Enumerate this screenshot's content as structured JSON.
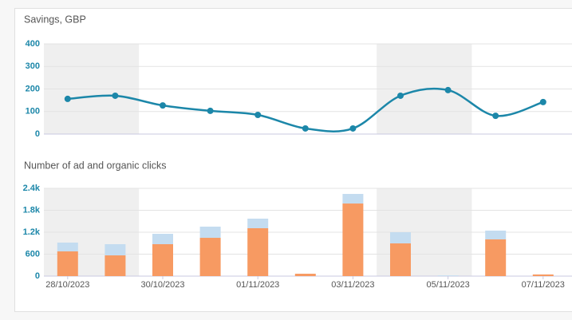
{
  "chart_data": [
    {
      "type": "line",
      "title": "Savings, GBP",
      "color": "#1c87a9",
      "values": [
        156,
        170,
        127,
        103,
        85,
        25,
        25,
        170,
        195,
        81,
        142
      ],
      "ylim": [
        0,
        400
      ],
      "yticks": [
        0,
        100,
        200,
        300,
        400
      ],
      "grid": true
    },
    {
      "type": "stacked-bar",
      "title": "Number of ad and organic clicks",
      "categories": [
        "28/10/2023",
        null,
        "30/10/2023",
        null,
        "01/11/2023",
        null,
        "03/11/2023",
        null,
        "05/11/2023",
        null,
        "07/11/2023"
      ],
      "series": [
        {
          "color": "#f79a62",
          "values": [
            676,
            567,
            873,
            1047,
            1309,
            65,
            1985,
            895,
            0,
            1004,
            45
          ]
        },
        {
          "color": "#c4dcf0",
          "values": [
            240,
            306,
            283,
            306,
            262,
            0,
            262,
            305,
            20,
            240,
            0
          ]
        }
      ],
      "ylim": [
        0,
        2400
      ],
      "yticks": [
        0,
        {
          "value": 600,
          "label": "600"
        },
        {
          "value": 1200,
          "label": "1.2k"
        },
        {
          "value": 1800,
          "label": "1.8k"
        },
        {
          "value": 2400,
          "label": "2.4k"
        }
      ],
      "grid": true
    }
  ]
}
